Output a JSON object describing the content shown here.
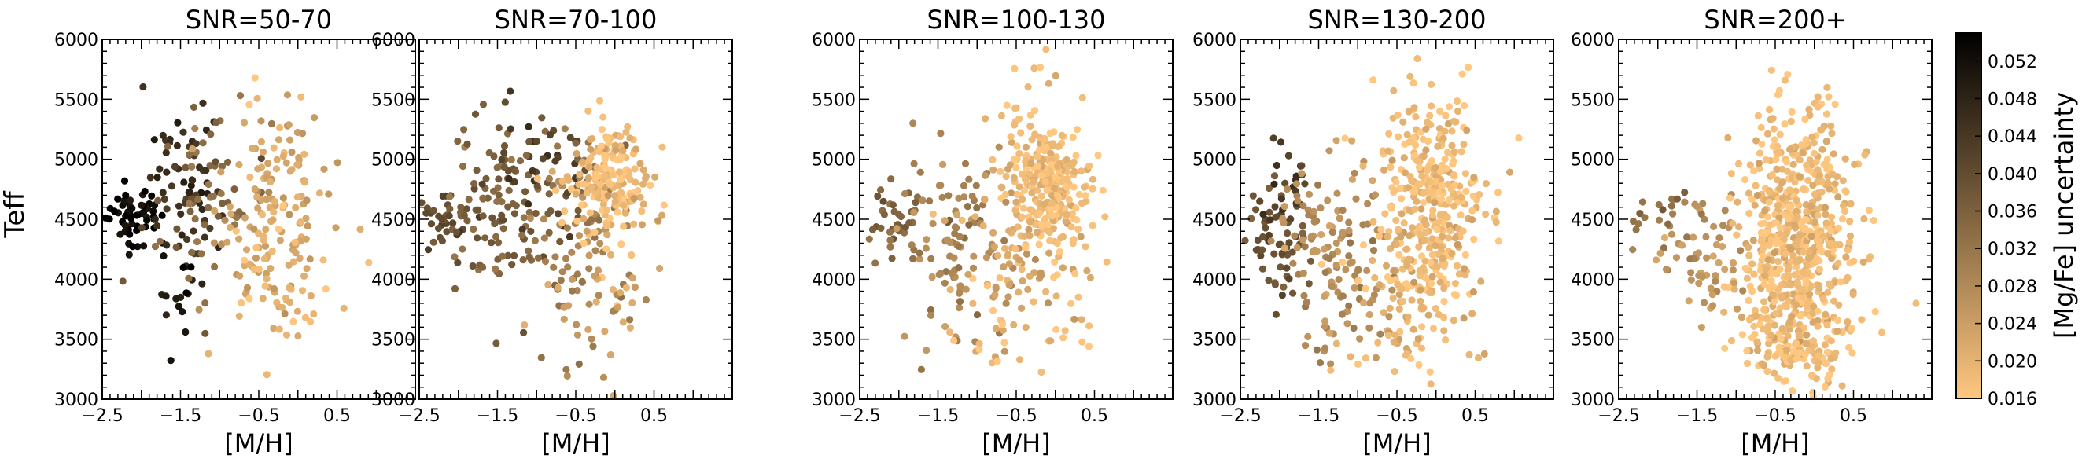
{
  "chart_data": {
    "type": "scatter",
    "shared_ylabel": "Teff",
    "panels": [
      {
        "title": "SNR=50-70",
        "xlabel": "[M/H]",
        "xlim": [
          -2.5,
          1.5
        ],
        "ylim": [
          3000,
          6000
        ],
        "xticks": [
          -2.5,
          -1.5,
          -0.5,
          0.5
        ],
        "yticks": [
          3000,
          3500,
          4000,
          4500,
          5000,
          5500,
          6000
        ],
        "clusters": [
          {
            "cx": -2.1,
            "cy": 4520,
            "sx": 0.18,
            "sy": 120,
            "n": 55,
            "u": 0.054
          },
          {
            "cx": -1.45,
            "cy": 4750,
            "sx": 0.25,
            "sy": 380,
            "n": 70,
            "u": 0.046
          },
          {
            "cx": -1.5,
            "cy": 3900,
            "sx": 0.12,
            "sy": 250,
            "n": 14,
            "u": 0.05
          },
          {
            "cx": -1.05,
            "cy": 4600,
            "sx": 0.35,
            "sy": 400,
            "n": 55,
            "u": 0.034
          },
          {
            "cx": -0.35,
            "cy": 4600,
            "sx": 0.35,
            "sy": 480,
            "n": 150,
            "u": 0.022
          },
          {
            "cx": -0.2,
            "cy": 3900,
            "sx": 0.35,
            "sy": 300,
            "n": 30,
            "u": 0.019
          }
        ]
      },
      {
        "title": "SNR=70-100",
        "xlabel": "[M/H]",
        "xlim": [
          -2.5,
          1.5
        ],
        "ylim": [
          3000,
          6000
        ],
        "xticks": [
          -2.5,
          -1.5,
          -0.5,
          0.5
        ],
        "yticks": [
          3000,
          3500,
          4000,
          4500,
          5000,
          5500,
          6000
        ],
        "clusters": [
          {
            "cx": -2.2,
            "cy": 4450,
            "sx": 0.2,
            "sy": 150,
            "n": 35,
            "u": 0.04
          },
          {
            "cx": -1.45,
            "cy": 4550,
            "sx": 0.35,
            "sy": 380,
            "n": 110,
            "u": 0.036
          },
          {
            "cx": -0.9,
            "cy": 4900,
            "sx": 0.3,
            "sy": 300,
            "n": 40,
            "u": 0.042
          },
          {
            "cx": -0.4,
            "cy": 4300,
            "sx": 0.35,
            "sy": 500,
            "n": 90,
            "u": 0.03
          },
          {
            "cx": -0.05,
            "cy": 4800,
            "sx": 0.25,
            "sy": 250,
            "n": 200,
            "u": 0.018
          },
          {
            "cx": -0.1,
            "cy": 3800,
            "sx": 0.4,
            "sy": 300,
            "n": 30,
            "u": 0.022
          }
        ]
      },
      {
        "title": "SNR=100-130",
        "xlabel": "[M/H]",
        "xlim": [
          -2.5,
          1.5
        ],
        "ylim": [
          3000,
          6000
        ],
        "xticks": [
          -2.5,
          -1.5,
          -0.5,
          0.5
        ],
        "yticks": [
          3000,
          3500,
          4000,
          4500,
          5000,
          5500,
          6000
        ],
        "clusters": [
          {
            "cx": -2.0,
            "cy": 4450,
            "sx": 0.25,
            "sy": 130,
            "n": 40,
            "u": 0.035
          },
          {
            "cx": -1.3,
            "cy": 4300,
            "sx": 0.35,
            "sy": 350,
            "n": 90,
            "u": 0.029
          },
          {
            "cx": -0.6,
            "cy": 4200,
            "sx": 0.4,
            "sy": 450,
            "n": 100,
            "u": 0.022
          },
          {
            "cx": -0.05,
            "cy": 4750,
            "sx": 0.25,
            "sy": 280,
            "n": 250,
            "u": 0.018
          },
          {
            "cx": -0.3,
            "cy": 5300,
            "sx": 0.35,
            "sy": 300,
            "n": 30,
            "u": 0.017
          },
          {
            "cx": -0.4,
            "cy": 3600,
            "sx": 0.4,
            "sy": 250,
            "n": 25,
            "u": 0.017
          }
        ]
      },
      {
        "title": "SNR=130-200",
        "xlabel": "[M/H]",
        "xlim": [
          -2.5,
          1.5
        ],
        "ylim": [
          3000,
          6000
        ],
        "xticks": [
          -2.5,
          -1.5,
          -0.5,
          0.5
        ],
        "yticks": [
          3000,
          3500,
          4000,
          4500,
          5000,
          5500,
          6000
        ],
        "clusters": [
          {
            "cx": -2.0,
            "cy": 4300,
            "sx": 0.22,
            "sy": 200,
            "n": 60,
            "u": 0.038
          },
          {
            "cx": -1.9,
            "cy": 4800,
            "sx": 0.2,
            "sy": 220,
            "n": 20,
            "u": 0.044
          },
          {
            "cx": -1.3,
            "cy": 4200,
            "sx": 0.35,
            "sy": 400,
            "n": 130,
            "u": 0.027
          },
          {
            "cx": -0.1,
            "cy": 4600,
            "sx": 0.35,
            "sy": 480,
            "n": 400,
            "u": 0.018
          },
          {
            "cx": -0.4,
            "cy": 3550,
            "sx": 0.45,
            "sy": 180,
            "n": 50,
            "u": 0.02
          }
        ]
      },
      {
        "title": "SNR=200+",
        "xlabel": "[M/H]",
        "xlim": [
          -2.5,
          1.5
        ],
        "ylim": [
          3000,
          6000
        ],
        "xticks": [
          -2.5,
          -1.5,
          -0.5,
          0.5
        ],
        "yticks": [
          3000,
          3500,
          4000,
          4500,
          5000,
          5500,
          6000
        ],
        "clusters": [
          {
            "cx": -2.0,
            "cy": 4500,
            "sx": 0.25,
            "sy": 180,
            "n": 25,
            "u": 0.032
          },
          {
            "cx": -1.3,
            "cy": 4100,
            "sx": 0.3,
            "sy": 300,
            "n": 60,
            "u": 0.025
          },
          {
            "cx": -0.2,
            "cy": 4300,
            "sx": 0.35,
            "sy": 550,
            "n": 650,
            "u": 0.018
          },
          {
            "cx": -0.3,
            "cy": 3450,
            "sx": 0.35,
            "sy": 150,
            "n": 80,
            "u": 0.018
          }
        ]
      }
    ],
    "colorbar": {
      "label": "[Mg/Fe] uncertainty",
      "min": 0.016,
      "max": 0.055,
      "ticks": [
        "0.016",
        "0.020",
        "0.024",
        "0.028",
        "0.032",
        "0.036",
        "0.040",
        "0.044",
        "0.048",
        "0.052"
      ],
      "colormap": "copper_r",
      "color_low": "#ffc77f",
      "color_high": "#000000"
    },
    "grid": false,
    "legend": "none"
  }
}
